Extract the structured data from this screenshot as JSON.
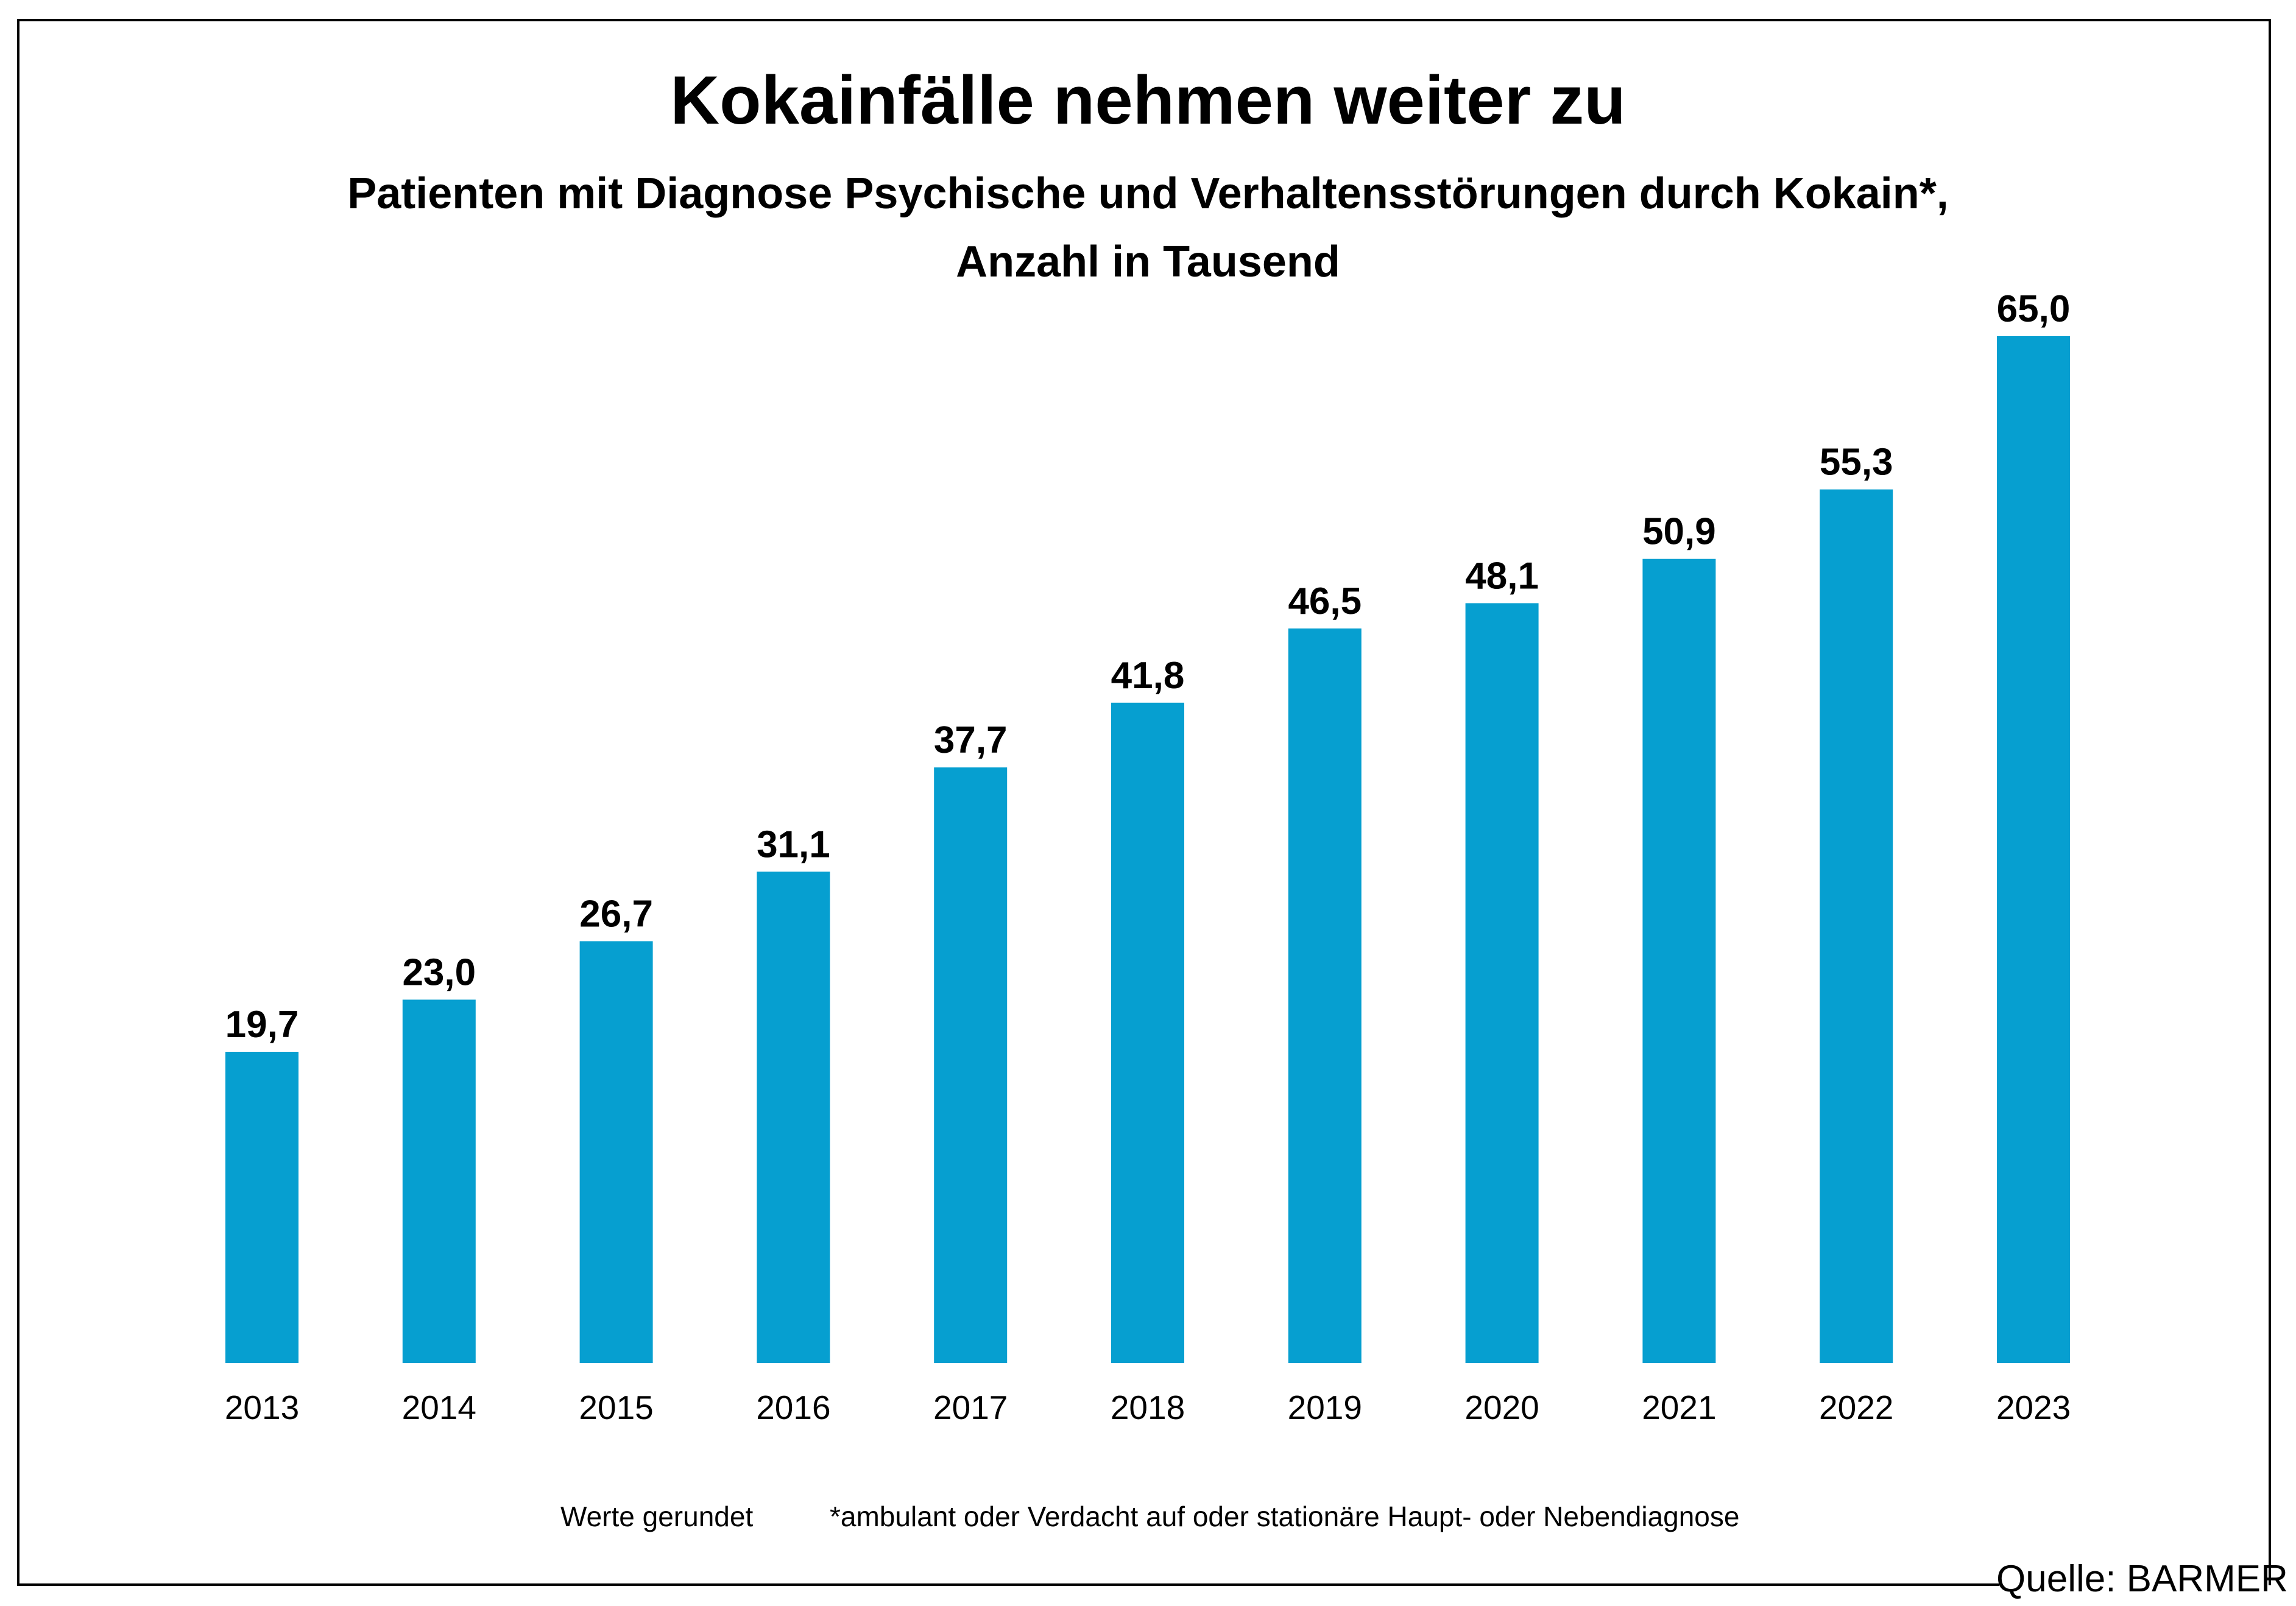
{
  "title": "Kokainfälle nehmen weiter zu",
  "subtitle_line1": "Patienten mit Diagnose Psychische und Verhaltensstörungen durch Kokain*,",
  "subtitle_line2": "Anzahl in Tausend",
  "notes": {
    "rounded": "Werte gerundet",
    "footnote": "*ambulant oder Verdacht auf oder stationäre Haupt- oder Nebendiagnose"
  },
  "source": "Quelle: BARMER",
  "colors": {
    "bar": "#069fd0"
  },
  "chart_data": {
    "type": "bar",
    "title": "Kokainfälle nehmen weiter zu",
    "subtitle": "Patienten mit Diagnose Psychische und Verhaltensstörungen durch Kokain*, Anzahl in Tausend",
    "xlabel": "",
    "ylabel": "",
    "categories": [
      "2013",
      "2014",
      "2015",
      "2016",
      "2017",
      "2018",
      "2019",
      "2020",
      "2021",
      "2022",
      "2023"
    ],
    "values": [
      19.7,
      23.0,
      26.7,
      31.1,
      37.7,
      41.8,
      46.5,
      48.1,
      50.9,
      55.3,
      65.0
    ],
    "value_labels": [
      "19,7",
      "23,0",
      "26,7",
      "31,1",
      "37,7",
      "41,8",
      "46,5",
      "48,1",
      "50,9",
      "55,3",
      "65,0"
    ],
    "ylim": [
      0,
      65.0
    ],
    "grid": false,
    "legend": "none"
  }
}
